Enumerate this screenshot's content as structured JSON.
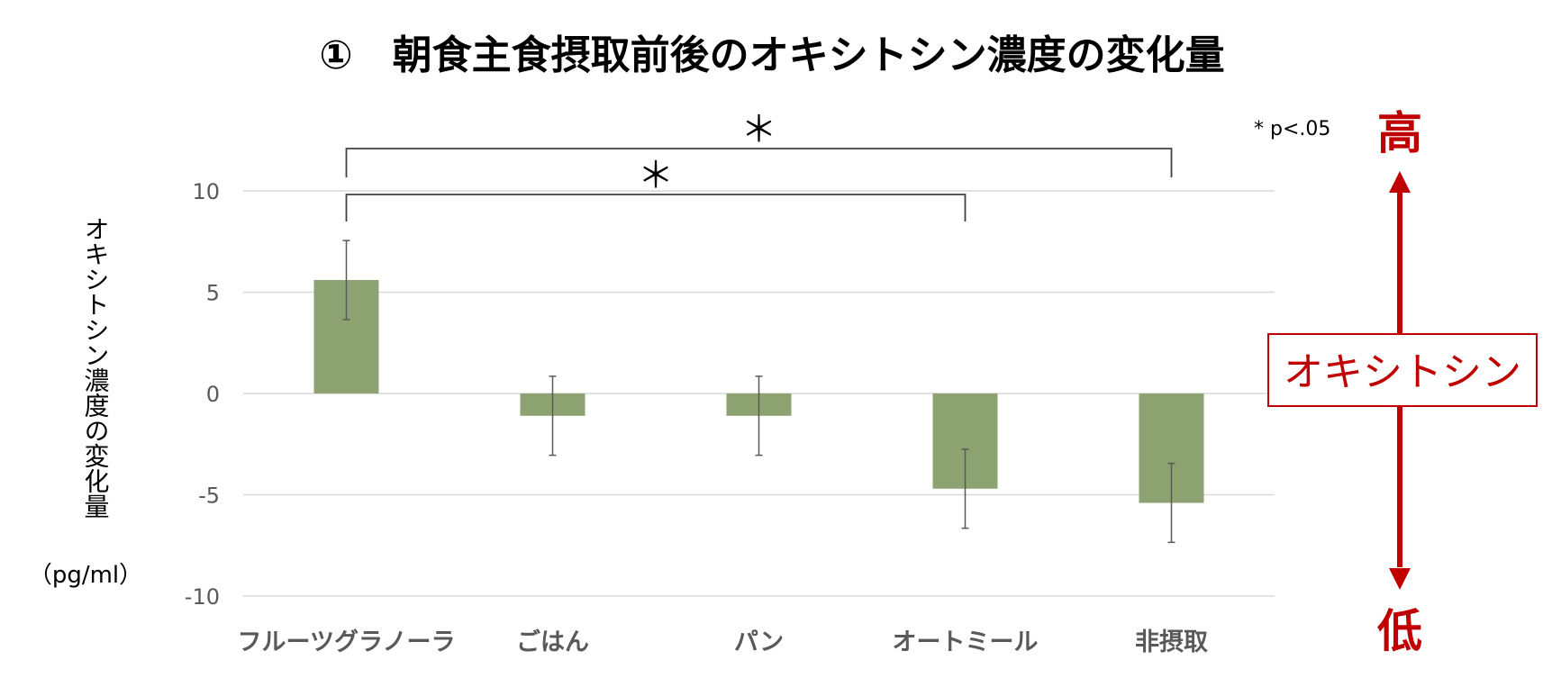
{
  "colors": {
    "bar": "#8ca271",
    "accent": "#c00000",
    "grid": "#d9d9d9",
    "text": "#595959"
  },
  "chart_data": {
    "type": "bar",
    "title": "①　朝食主食摂取前後のオキシトシン濃度の変化量",
    "ylabel_lines": [
      "オキシトシン濃度の変化量",
      "（pg/ml）"
    ],
    "categories": [
      "フルーツグラノーラ",
      "ごはん",
      "パン",
      "オートミール",
      "非摂取"
    ],
    "values": [
      5.6,
      -1.1,
      -1.1,
      -4.7,
      -5.4
    ],
    "error": [
      1.95,
      1.95,
      1.95,
      1.95,
      1.95
    ],
    "ylim": [
      -10,
      10
    ],
    "yticks": [
      10,
      5,
      0,
      -5,
      -10
    ],
    "ytick_labels": [
      "10",
      "5",
      "0",
      "-5",
      "-10"
    ],
    "grid": true,
    "significance": [
      {
        "from": 0,
        "to": 4,
        "label": "＊"
      },
      {
        "from": 0,
        "to": 3,
        "label": "＊"
      }
    ],
    "p_note": "* p<.05",
    "annotation": {
      "high": "高",
      "low": "低",
      "label": "オキシトシン"
    }
  }
}
